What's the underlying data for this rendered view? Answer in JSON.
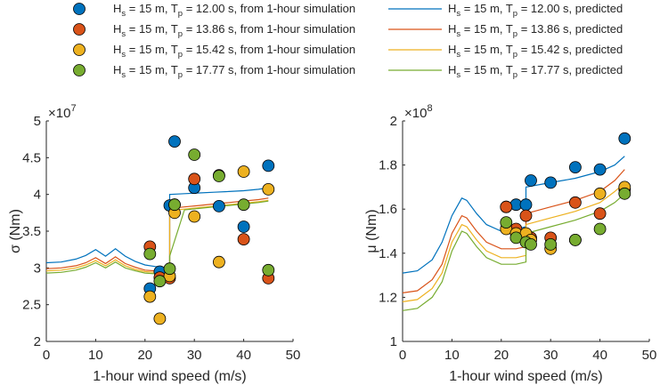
{
  "legend": {
    "entries": [
      {
        "hs": "15 m",
        "tp": "12.00 s",
        "color": "#0072BD"
      },
      {
        "hs": "15 m",
        "tp": "13.86 s",
        "color": "#D95319"
      },
      {
        "hs": "15 m",
        "tp": "15.42 s",
        "color": "#EDB120"
      },
      {
        "hs": "15 m",
        "tp": "17.77 s",
        "color": "#77AC30"
      }
    ],
    "sim_suffix": ", from 1-hour simulation",
    "pred_suffix": ", predicted"
  },
  "chart_data": [
    {
      "type": "scatter",
      "xlabel": "1-hour wind speed (m/s)",
      "ylabel": "σ (Nm)",
      "exponent": "7",
      "xlim": [
        0,
        50
      ],
      "ylim": [
        2,
        5
      ],
      "xticks": [
        0,
        10,
        20,
        30,
        40,
        50
      ],
      "yticks": [
        2,
        2.5,
        3,
        3.5,
        4,
        4.5,
        5
      ],
      "grid": false,
      "series": [
        {
          "type": "scatter",
          "color": "#0072BD",
          "x": [
            21,
            23,
            25,
            26,
            30,
            35,
            40,
            45
          ],
          "y": [
            2.72,
            2.95,
            3.85,
            4.72,
            4.09,
            3.84,
            3.56,
            4.39
          ]
        },
        {
          "type": "scatter",
          "color": "#D95319",
          "x": [
            21,
            23,
            25,
            26,
            30,
            35,
            40,
            45
          ],
          "y": [
            3.29,
            2.87,
            2.86,
            3.86,
            4.21,
            4.26,
            3.39,
            2.86
          ]
        },
        {
          "type": "scatter",
          "color": "#EDB120",
          "x": [
            21,
            23,
            25,
            26,
            30,
            35,
            40,
            45
          ],
          "y": [
            2.61,
            2.31,
            2.89,
            3.75,
            3.7,
            3.08,
            4.31,
            4.07
          ]
        },
        {
          "type": "scatter",
          "color": "#77AC30",
          "x": [
            21,
            23,
            25,
            26,
            30,
            35,
            40,
            45
          ],
          "y": [
            3.19,
            2.82,
            2.99,
            3.86,
            4.54,
            4.25,
            3.86,
            2.97
          ]
        },
        {
          "type": "line",
          "color": "#0072BD",
          "x": [
            0,
            3,
            6,
            8,
            10,
            12,
            14,
            16,
            18,
            20,
            22,
            25,
            25,
            28,
            31,
            34,
            37,
            40,
            43,
            45
          ],
          "y": [
            3.07,
            3.08,
            3.12,
            3.17,
            3.25,
            3.16,
            3.26,
            3.16,
            3.09,
            3.04,
            3.02,
            3.0,
            4.0,
            4.01,
            4.02,
            4.03,
            4.04,
            4.05,
            4.07,
            4.09
          ]
        },
        {
          "type": "line",
          "color": "#D95319",
          "x": [
            0,
            3,
            6,
            8,
            10,
            12,
            14,
            16,
            18,
            20,
            22,
            25,
            25,
            28,
            31,
            34,
            37,
            40,
            43,
            45
          ],
          "y": [
            2.99,
            3.0,
            3.03,
            3.07,
            3.14,
            3.06,
            3.15,
            3.06,
            3.01,
            2.97,
            2.96,
            2.95,
            3.81,
            3.83,
            3.85,
            3.87,
            3.89,
            3.91,
            3.93,
            3.95
          ]
        },
        {
          "type": "line",
          "color": "#EDB120",
          "x": [
            0,
            3,
            6,
            8,
            10,
            12,
            14,
            16,
            18,
            20,
            22,
            25,
            25,
            28,
            31,
            34,
            37,
            40,
            43,
            45
          ],
          "y": [
            2.96,
            2.97,
            3.0,
            3.04,
            3.1,
            3.03,
            3.11,
            3.03,
            2.98,
            2.95,
            2.94,
            2.93,
            3.78,
            3.8,
            3.82,
            3.84,
            3.86,
            3.88,
            3.9,
            3.92
          ]
        },
        {
          "type": "line",
          "color": "#77AC30",
          "x": [
            0,
            3,
            6,
            8,
            10,
            12,
            14,
            16,
            18,
            20,
            22,
            25,
            25,
            28,
            31,
            34,
            37,
            40,
            43,
            45
          ],
          "y": [
            2.93,
            2.94,
            2.97,
            3.01,
            3.07,
            3.0,
            3.08,
            3.0,
            2.96,
            2.93,
            2.92,
            2.91,
            3.16,
            3.79,
            3.81,
            3.83,
            3.85,
            3.87,
            3.89,
            3.91
          ]
        }
      ]
    },
    {
      "type": "scatter",
      "xlabel": "1-hour wind speed (m/s)",
      "ylabel": "μ (Nm)",
      "exponent": "8",
      "xlim": [
        0,
        50
      ],
      "ylim": [
        1,
        2
      ],
      "xticks": [
        0,
        10,
        20,
        30,
        40,
        50
      ],
      "yticks": [
        1,
        1.2,
        1.4,
        1.6,
        1.8,
        2
      ],
      "grid": false,
      "series": [
        {
          "type": "scatter",
          "color": "#0072BD",
          "x": [
            21,
            23,
            25,
            26,
            30,
            35,
            40,
            45
          ],
          "y": [
            1.61,
            1.62,
            1.62,
            1.73,
            1.72,
            1.79,
            1.78,
            1.92
          ]
        },
        {
          "type": "scatter",
          "color": "#D95319",
          "x": [
            21,
            23,
            25,
            26,
            30,
            35,
            40,
            45
          ],
          "y": [
            1.61,
            1.51,
            1.57,
            1.47,
            1.47,
            1.63,
            1.58,
            1.69
          ]
        },
        {
          "type": "scatter",
          "color": "#EDB120",
          "x": [
            21,
            23,
            25,
            26,
            30,
            35,
            40,
            45
          ],
          "y": [
            1.51,
            1.49,
            1.49,
            1.46,
            1.42,
            1.46,
            1.67,
            1.7
          ]
        },
        {
          "type": "scatter",
          "color": "#77AC30",
          "x": [
            21,
            23,
            25,
            26,
            30,
            35,
            40,
            45
          ],
          "y": [
            1.54,
            1.47,
            1.45,
            1.44,
            1.44,
            1.46,
            1.51,
            1.67
          ]
        }
      ],
      "lines": [
        {
          "color": "#0072BD",
          "x": [
            0,
            3,
            6,
            8,
            10,
            12,
            13,
            15,
            17,
            20,
            23,
            25,
            25,
            30,
            35,
            40,
            43,
            45
          ],
          "y": [
            1.31,
            1.32,
            1.37,
            1.45,
            1.57,
            1.65,
            1.64,
            1.58,
            1.53,
            1.5,
            1.51,
            1.52,
            1.7,
            1.72,
            1.74,
            1.77,
            1.8,
            1.84
          ]
        },
        {
          "color": "#D95319",
          "x": [
            0,
            3,
            6,
            8,
            10,
            12,
            13,
            15,
            17,
            20,
            23,
            25,
            25,
            30,
            35,
            40,
            43,
            45
          ],
          "y": [
            1.22,
            1.23,
            1.28,
            1.35,
            1.49,
            1.57,
            1.56,
            1.5,
            1.45,
            1.42,
            1.42,
            1.43,
            1.58,
            1.61,
            1.64,
            1.68,
            1.73,
            1.78
          ]
        },
        {
          "color": "#EDB120",
          "x": [
            0,
            3,
            6,
            8,
            10,
            12,
            13,
            15,
            17,
            20,
            23,
            25,
            25,
            30,
            35,
            40,
            43,
            45
          ],
          "y": [
            1.18,
            1.19,
            1.24,
            1.31,
            1.45,
            1.53,
            1.52,
            1.46,
            1.41,
            1.38,
            1.38,
            1.39,
            1.53,
            1.56,
            1.59,
            1.63,
            1.68,
            1.72
          ]
        },
        {
          "color": "#77AC30",
          "x": [
            0,
            3,
            6,
            8,
            10,
            12,
            13,
            15,
            17,
            20,
            23,
            25,
            25,
            30,
            35,
            40,
            43,
            45
          ],
          "y": [
            1.14,
            1.15,
            1.2,
            1.27,
            1.41,
            1.5,
            1.49,
            1.43,
            1.38,
            1.35,
            1.35,
            1.36,
            1.49,
            1.52,
            1.55,
            1.59,
            1.63,
            1.67
          ]
        }
      ]
    }
  ]
}
